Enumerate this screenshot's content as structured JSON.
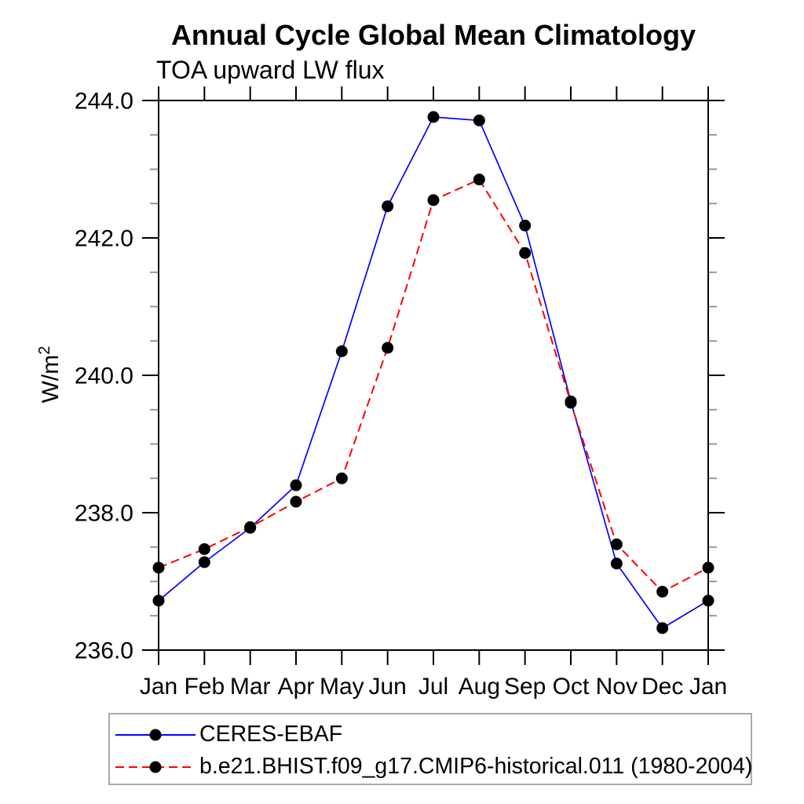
{
  "header": {
    "title": "Annual Cycle Global Mean Climatology",
    "subtitle": "TOA upward LW flux"
  },
  "chart_data": {
    "type": "line",
    "title": "Annual Cycle Global Mean Climatology",
    "subtitle": "TOA upward LW flux",
    "ylabel": {
      "base": "W/m",
      "exponent": "2"
    },
    "xlabel": "",
    "ylim": [
      236.0,
      244.0
    ],
    "ytick_major_interval": 2.0,
    "ytick_minor_interval": 0.5,
    "ytick_labels": [
      "236.0",
      "238.0",
      "240.0",
      "242.0",
      "244.0"
    ],
    "grid": false,
    "legend_position": "bottom-left",
    "categories": [
      "Jan",
      "Feb",
      "Mar",
      "Apr",
      "May",
      "Jun",
      "Jul",
      "Aug",
      "Sep",
      "Oct",
      "Nov",
      "Dec",
      "Jan"
    ],
    "series": [
      {
        "name": "CERES-EBAF",
        "color": "#0000ff",
        "line_style": "solid",
        "marker": "circle",
        "marker_color": "#000000",
        "values": [
          236.72,
          237.28,
          237.78,
          238.4,
          240.35,
          242.46,
          243.76,
          243.71,
          242.18,
          239.62,
          237.26,
          236.32,
          236.72
        ]
      },
      {
        "name": "b.e21.BHIST.f09_g17.CMIP6-historical.011 (1980-2004)",
        "color": "#ff0000",
        "line_style": "dashed",
        "marker": "circle",
        "marker_color": "#000000",
        "values": [
          237.2,
          237.47,
          237.79,
          238.16,
          238.5,
          240.4,
          242.55,
          242.85,
          241.78,
          239.6,
          237.54,
          236.85,
          237.2
        ]
      }
    ],
    "colors": {
      "axis": "#000000",
      "minor_tick": "#888888",
      "text": "#000000",
      "legend_border": "#aaaaaa"
    }
  }
}
